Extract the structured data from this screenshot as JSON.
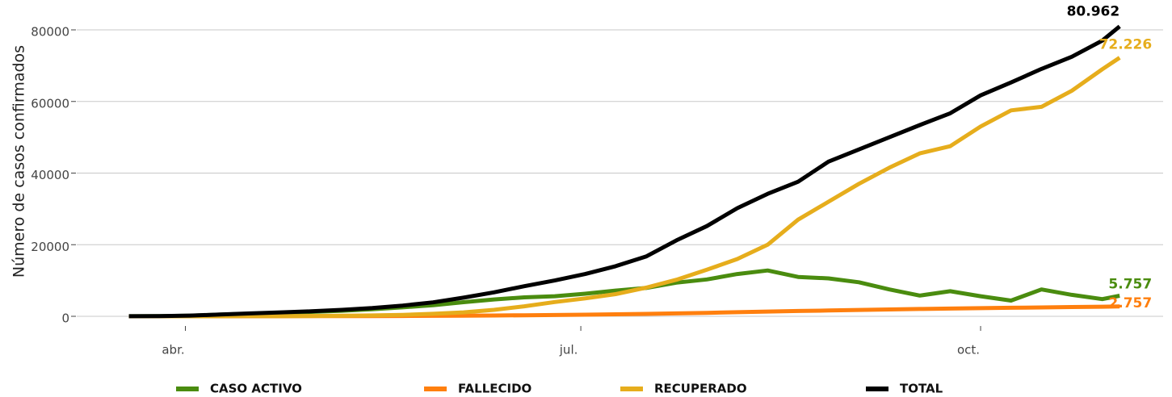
{
  "chart_data": {
    "type": "line",
    "y_label": "Número de casos confirmados",
    "x": [
      79,
      86,
      93,
      100,
      107,
      114,
      121,
      128,
      135,
      142,
      149,
      156,
      163,
      170,
      177,
      184,
      191,
      198,
      205,
      212,
      219,
      226,
      233,
      240,
      247,
      254,
      261,
      268,
      275,
      282,
      289,
      296,
      303,
      307
    ],
    "xlim": [
      67,
      317
    ],
    "xticks": [
      {
        "value": 92,
        "label": "abr."
      },
      {
        "value": 183,
        "label": "jul."
      },
      {
        "value": 275,
        "label": "oct."
      }
    ],
    "ylim": [
      0,
      80000
    ],
    "yticks": [
      0,
      20000,
      40000,
      60000,
      80000
    ],
    "grid": true,
    "legend": "bottom",
    "series": [
      {
        "name": "CASO ACTIVO",
        "color": "#4a8c0f",
        "values": [
          20,
          60,
          190,
          470,
          740,
          1000,
          1250,
          1550,
          1950,
          2500,
          3100,
          3950,
          4700,
          5300,
          5600,
          6300,
          7200,
          7900,
          9400,
          10300,
          11800,
          12800,
          11000,
          10600,
          9500,
          7500,
          5800,
          7000,
          5600,
          4400,
          7500,
          6000,
          4800,
          5757
        ],
        "value_labels": [
          null,
          null,
          null,
          null,
          null,
          null,
          null,
          null,
          null,
          null,
          null,
          null,
          null,
          null,
          null,
          null,
          null,
          null,
          null,
          null,
          null,
          null,
          null,
          null,
          null,
          null,
          null,
          null,
          null,
          null,
          null,
          null,
          null,
          "5.757"
        ]
      },
      {
        "name": "FALLECIDO",
        "color": "#ff7f0e",
        "values": [
          0,
          1,
          3,
          8,
          15,
          25,
          35,
          50,
          70,
          100,
          130,
          170,
          220,
          290,
          370,
          460,
          560,
          680,
          820,
          980,
          1150,
          1320,
          1480,
          1630,
          1780,
          1920,
          2050,
          2170,
          2280,
          2390,
          2490,
          2590,
          2690,
          2757
        ],
        "value_labels": [
          null,
          null,
          null,
          null,
          null,
          null,
          null,
          null,
          null,
          null,
          null,
          null,
          null,
          null,
          null,
          null,
          null,
          null,
          null,
          null,
          null,
          null,
          null,
          null,
          null,
          null,
          null,
          null,
          null,
          null,
          null,
          null,
          null,
          "2.757"
        ]
      },
      {
        "name": "RECUPERADO",
        "color": "#e6ad1c",
        "values": [
          0,
          0,
          10,
          20,
          40,
          60,
          100,
          150,
          250,
          400,
          700,
          1100,
          1800,
          2800,
          4000,
          5000,
          6200,
          8000,
          10200,
          13000,
          16000,
          20000,
          27000,
          32000,
          37000,
          41500,
          45500,
          47500,
          53000,
          57500,
          58500,
          63000,
          69000,
          72226
        ],
        "value_labels": [
          null,
          null,
          null,
          null,
          null,
          null,
          null,
          null,
          null,
          null,
          null,
          null,
          null,
          null,
          null,
          null,
          null,
          null,
          null,
          null,
          null,
          null,
          null,
          null,
          null,
          null,
          null,
          null,
          null,
          null,
          null,
          null,
          null,
          "72.226"
        ]
      },
      {
        "name": "TOTAL",
        "color": "#000000",
        "values": [
          20,
          60,
          200,
          500,
          800,
          1100,
          1400,
          1800,
          2300,
          3000,
          3900,
          5200,
          6700,
          8400,
          10000,
          11800,
          14000,
          16700,
          21200,
          25200,
          30200,
          34200,
          37600,
          43200,
          46600,
          50000,
          53400,
          56700,
          61700,
          65300,
          69100,
          72500,
          77000,
          80962
        ],
        "value_labels": [
          null,
          null,
          null,
          null,
          null,
          null,
          null,
          null,
          null,
          null,
          null,
          null,
          null,
          null,
          null,
          null,
          null,
          null,
          null,
          null,
          null,
          null,
          null,
          null,
          null,
          null,
          null,
          null,
          null,
          null,
          null,
          null,
          null,
          "80.962"
        ]
      }
    ]
  }
}
